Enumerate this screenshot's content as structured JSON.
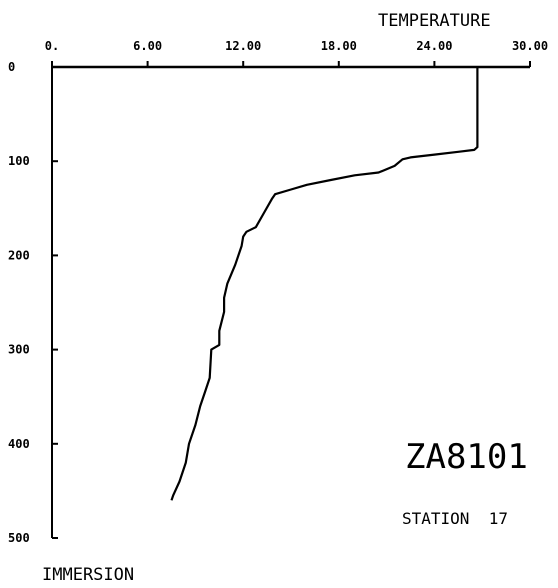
{
  "chart_data": {
    "type": "line",
    "x_axis_title": "TEMPERATURE",
    "y_axis_title": "IMMERSION",
    "x_ticks": [
      "0.",
      "6.00",
      "12.00",
      "18.00",
      "24.00",
      "30.00"
    ],
    "x_tick_values": [
      0,
      6,
      12,
      18,
      24,
      30
    ],
    "y_ticks": [
      "0",
      "100",
      "200",
      "300",
      "400",
      "500"
    ],
    "y_tick_values": [
      0,
      100,
      200,
      300,
      400,
      500
    ],
    "xlim": [
      0,
      30
    ],
    "ylim": [
      0,
      500
    ],
    "y_inverted": true,
    "x_axis_position": "top",
    "grid": false,
    "series": [
      {
        "x": [
          26.7,
          26.7,
          26.5,
          25.5,
          24.0,
          22.5,
          22.0,
          21.5,
          20.5,
          19.0,
          17.5,
          16.0,
          15.0,
          14.0,
          13.8,
          13.3,
          12.8,
          12.2,
          12.0,
          11.9,
          11.5,
          11.0,
          10.8,
          10.8,
          10.5,
          10.5,
          10.0,
          9.9,
          9.6,
          9.3,
          9.0,
          8.6,
          8.4,
          8.0,
          7.6,
          7.5
        ],
        "y": [
          0,
          85,
          88,
          90,
          93,
          96,
          98,
          105,
          112,
          115,
          120,
          125,
          130,
          135,
          140,
          155,
          170,
          175,
          180,
          190,
          210,
          230,
          245,
          260,
          280,
          295,
          300,
          330,
          345,
          360,
          380,
          400,
          420,
          440,
          455,
          460
        ]
      }
    ],
    "annotations": [
      "ZA8101",
      "STATION  17"
    ]
  }
}
